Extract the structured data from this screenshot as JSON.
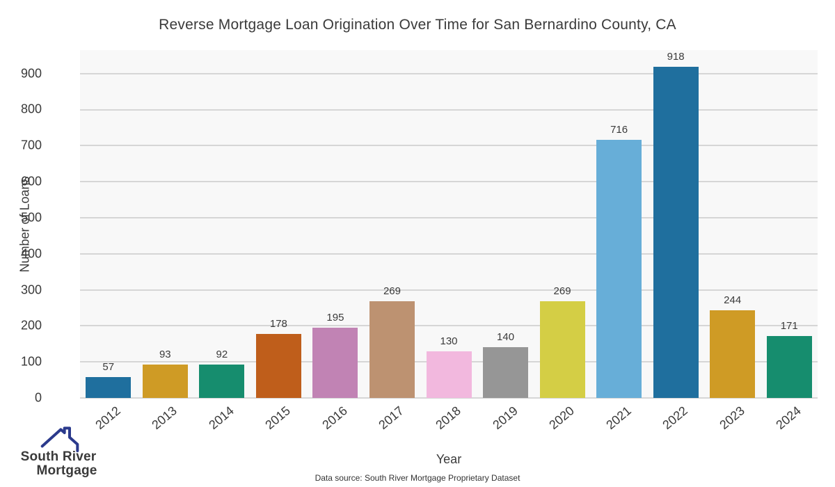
{
  "title": "Reverse Mortgage Loan Origination Over Time for San Bernardino County, CA",
  "footer": {
    "data_source": "Data source: South River Mortgage Proprietary Dataset"
  },
  "logo": {
    "line1": "South River",
    "line2": "Mortgage",
    "house_color": "#2b3a8c",
    "line1_color": "#4f6db3",
    "line2_color": "#2b3990"
  },
  "chart_data": {
    "type": "bar",
    "title": "Reverse Mortgage Loan Origination Over Time for San Bernardino County, CA",
    "xlabel": "Year",
    "ylabel": "Number of Loans",
    "categories": [
      "2012",
      "2013",
      "2014",
      "2015",
      "2016",
      "2017",
      "2018",
      "2019",
      "2020",
      "2021",
      "2022",
      "2023",
      "2024"
    ],
    "values": [
      57,
      93,
      92,
      178,
      195,
      269,
      130,
      140,
      269,
      716,
      918,
      244,
      171
    ],
    "bar_colors": [
      "#1f6f9e",
      "#cf9b25",
      "#168d6e",
      "#bf5e1b",
      "#c183b4",
      "#bd9271",
      "#f2b8de",
      "#969696",
      "#d4ce45",
      "#67aed8",
      "#1f6f9e",
      "#cf9b25",
      "#168d6e"
    ],
    "yticks": [
      0,
      100,
      200,
      300,
      400,
      500,
      600,
      700,
      800,
      900
    ],
    "ylim": [
      0,
      965
    ],
    "grid": "horizontal-only",
    "legend": "none",
    "plot_bg": "#f8f8f8",
    "grid_color": "#d6d6d6",
    "text_color": "#3a3a3a"
  }
}
